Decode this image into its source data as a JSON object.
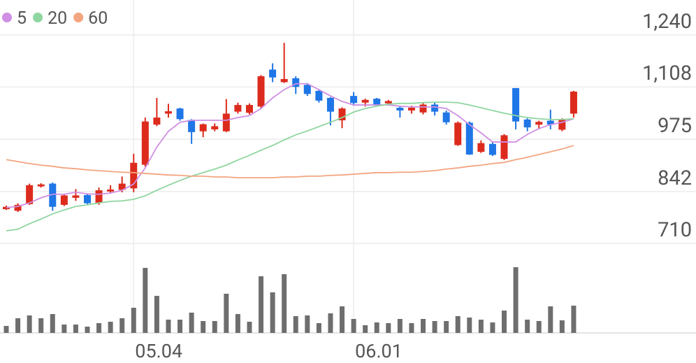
{
  "chart_data": {
    "type": "candlestick",
    "x": [
      null,
      null,
      null,
      null,
      null,
      null,
      null,
      null,
      null,
      null,
      null,
      "05.04",
      null,
      null,
      null,
      null,
      null,
      null,
      null,
      null,
      null,
      null,
      null,
      null,
      null,
      null,
      null,
      null,
      null,
      null,
      "06.01",
      null,
      null,
      null,
      null,
      null,
      null,
      null,
      null,
      null,
      null,
      null,
      null,
      null,
      null,
      null,
      null,
      null,
      null,
      null
    ],
    "open": [
      797,
      793,
      810,
      855,
      862,
      808,
      826,
      833,
      813,
      842,
      846,
      850,
      910,
      1012,
      1040,
      1053,
      1024,
      995,
      1000,
      995,
      1045,
      1042,
      1058,
      1152,
      1120,
      1130,
      1113,
      1098,
      1080,
      1023,
      1085,
      1068,
      1078,
      1066,
      1055,
      1048,
      1043,
      1063,
      1043,
      960,
      1017,
      943,
      963,
      925,
      1105,
      1025,
      1012,
      1022,
      999,
      1040
    ],
    "high": [
      806,
      812,
      862,
      863,
      865,
      835,
      848,
      835,
      852,
      858,
      880,
      938,
      1030,
      1080,
      1065,
      1055,
      1026,
      1015,
      1015,
      1077,
      1068,
      1066,
      1138,
      1168,
      1220,
      1135,
      1118,
      1100,
      1082,
      1056,
      1095,
      1078,
      1080,
      1075,
      1058,
      1060,
      1068,
      1068,
      1048,
      1020,
      1020,
      972,
      968,
      988,
      1105,
      1028,
      1022,
      1050,
      1028,
      1098
    ],
    "low": [
      795,
      790,
      808,
      852,
      793,
      805,
      818,
      810,
      808,
      838,
      840,
      840,
      905,
      1008,
      1030,
      1022,
      963,
      980,
      995,
      993,
      1040,
      1038,
      1052,
      1120,
      1118,
      1090,
      1085,
      1068,
      1010,
      1003,
      1060,
      1058,
      1058,
      1064,
      1030,
      1040,
      1038,
      1035,
      1012,
      958,
      935,
      940,
      932,
      922,
      1000,
      995,
      1000,
      1000,
      995,
      1030
    ],
    "close": [
      803,
      808,
      858,
      860,
      803,
      832,
      832,
      812,
      845,
      847,
      862,
      915,
      1020,
      1030,
      1046,
      1026,
      993,
      1013,
      1008,
      1040,
      1062,
      1062,
      1135,
      1132,
      1128,
      1108,
      1090,
      1073,
      1045,
      1053,
      1067,
      1075,
      1061,
      1072,
      1048,
      1055,
      1063,
      1045,
      1018,
      1017,
      936,
      965,
      935,
      985,
      1020,
      1005,
      1019,
      1012,
      1025,
      1096
    ],
    "volume": [
      10,
      21,
      25,
      21,
      27,
      12,
      12,
      9,
      14,
      16,
      21,
      36,
      93,
      53,
      19,
      19,
      29,
      17,
      17,
      56,
      27,
      16,
      81,
      58,
      84,
      24,
      25,
      14,
      28,
      38,
      20,
      11,
      15,
      14,
      20,
      14,
      20,
      17,
      17,
      24,
      22,
      19,
      15,
      32,
      94,
      19,
      17,
      38,
      18,
      39
    ],
    "series": [
      {
        "name": "5",
        "color": "#cf8fe3",
        "values": [
          801,
          804,
          813,
          826,
          835,
          835,
          840,
          836,
          835,
          838,
          845,
          861,
          902,
          955,
          995,
          1018,
          1023,
          1023,
          1023,
          1023,
          1030,
          1035,
          1053,
          1080,
          1101,
          1116,
          1116,
          1101,
          1085,
          1071,
          1062,
          1062,
          1062,
          1062,
          1059,
          1057,
          1057,
          1057,
          1053,
          1035,
          1012,
          991,
          968,
          968,
          968,
          987,
          1002,
          1012,
          1018,
          1027
        ]
      },
      {
        "name": "20",
        "color": "#8fd6a0",
        "values": [
          742,
          746,
          760,
          772,
          785,
          795,
          804,
          808,
          813,
          817,
          818,
          822,
          831,
          845,
          858,
          870,
          881,
          890,
          899,
          909,
          922,
          934,
          947,
          959,
          973,
          986,
          996,
          1007,
          1018,
          1030,
          1044,
          1053,
          1059,
          1064,
          1066,
          1066,
          1068,
          1069,
          1069,
          1068,
          1062,
          1055,
          1048,
          1041,
          1035,
          1030,
          1027,
          1025,
          1025,
          1027
        ]
      },
      {
        "name": "60",
        "color": "#f2a580",
        "values": [
          923,
          918,
          913,
          909,
          906,
          902,
          900,
          897,
          895,
          893,
          891,
          890,
          888,
          886,
          884,
          883,
          881,
          881,
          879,
          879,
          877,
          877,
          877,
          877,
          879,
          879,
          881,
          881,
          883,
          884,
          886,
          888,
          890,
          890,
          891,
          891,
          893,
          895,
          899,
          902,
          906,
          909,
          913,
          916,
          923,
          929,
          936,
          943,
          950,
          959
        ]
      }
    ],
    "up_color": "#dc2b1c",
    "down_color": "#1f76e6",
    "volume_color": "#6e6e6e",
    "ylim": [
      710,
      1240
    ],
    "yticks": [
      {
        "value": 710,
        "label": "710"
      },
      {
        "value": 842,
        "label": "842"
      },
      {
        "value": 975,
        "label": "975"
      },
      {
        "value": 1108,
        "label": "1,108"
      },
      {
        "value": 1240,
        "label": "1,240"
      }
    ],
    "grid": true
  }
}
